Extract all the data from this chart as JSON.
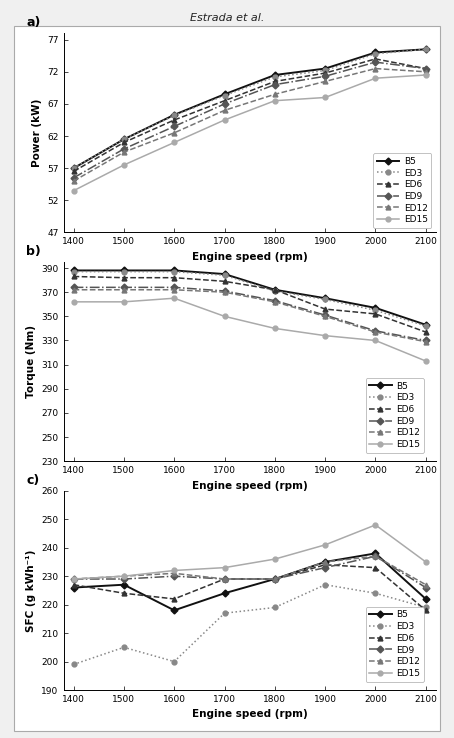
{
  "rpm": [
    1400,
    1500,
    1600,
    1700,
    1800,
    1900,
    2000,
    2100
  ],
  "power": {
    "B5": [
      57.0,
      61.5,
      65.3,
      68.5,
      71.5,
      72.5,
      75.0,
      75.5
    ],
    "ED3": [
      57.0,
      61.5,
      65.2,
      68.3,
      71.2,
      72.2,
      74.8,
      75.5
    ],
    "ED6": [
      56.5,
      61.0,
      64.5,
      67.5,
      70.5,
      71.8,
      74.0,
      72.5
    ],
    "ED9": [
      55.5,
      60.0,
      63.5,
      67.0,
      70.0,
      71.3,
      73.5,
      72.5
    ],
    "ED12": [
      55.0,
      59.5,
      62.5,
      66.0,
      68.5,
      70.5,
      72.5,
      72.0
    ],
    "ED15": [
      53.5,
      57.5,
      61.0,
      64.5,
      67.5,
      68.0,
      71.0,
      71.5
    ]
  },
  "torque": {
    "B5": [
      388,
      388,
      388,
      385,
      372,
      365,
      357,
      343
    ],
    "ED3": [
      387,
      387,
      387,
      384,
      371,
      364,
      355,
      342
    ],
    "ED6": [
      383,
      382,
      382,
      379,
      372,
      356,
      352,
      337
    ],
    "ED9": [
      374,
      374,
      374,
      371,
      363,
      351,
      338,
      330
    ],
    "ED12": [
      372,
      372,
      372,
      370,
      362,
      350,
      337,
      329
    ],
    "ED15": [
      362,
      362,
      365,
      350,
      340,
      334,
      330,
      313
    ]
  },
  "sfc": {
    "B5": [
      226,
      227,
      218,
      224,
      229,
      235,
      238,
      222
    ],
    "ED3": [
      199,
      205,
      200,
      217,
      219,
      227,
      224,
      219
    ],
    "ED6": [
      227,
      224,
      222,
      229,
      229,
      234,
      233,
      218
    ],
    "ED9": [
      229,
      229,
      230,
      229,
      229,
      233,
      237,
      226
    ],
    "ED12": [
      229,
      230,
      231,
      229,
      229,
      235,
      237,
      227
    ],
    "ED15": [
      229,
      230,
      232,
      233,
      236,
      241,
      248,
      235
    ]
  },
  "series_styles": {
    "B5": {
      "color": "#111111",
      "linestyle": "-",
      "marker": "D",
      "markersize": 3.5,
      "linewidth": 1.4,
      "markerfacecolor": "#111111"
    },
    "ED3": {
      "color": "#888888",
      "linestyle": ":",
      "marker": "o",
      "markersize": 3.5,
      "linewidth": 1.1,
      "markerfacecolor": "#888888"
    },
    "ED6": {
      "color": "#333333",
      "linestyle": "--",
      "marker": "^",
      "markersize": 3.5,
      "linewidth": 1.1,
      "markerfacecolor": "#333333"
    },
    "ED9": {
      "color": "#555555",
      "linestyle": "-.",
      "marker": "D",
      "markersize": 3.5,
      "linewidth": 1.1,
      "markerfacecolor": "#555555"
    },
    "ED12": {
      "color": "#777777",
      "linestyle": "--",
      "marker": "^",
      "markersize": 3.5,
      "linewidth": 1.1,
      "markerfacecolor": "#777777"
    },
    "ED15": {
      "color": "#aaaaaa",
      "linestyle": "-",
      "marker": "o",
      "markersize": 3.5,
      "linewidth": 1.1,
      "markerfacecolor": "#aaaaaa"
    }
  },
  "power_ylim": [
    47,
    78
  ],
  "power_yticks": [
    47,
    52,
    57,
    62,
    67,
    72,
    77
  ],
  "torque_ylim": [
    230,
    395
  ],
  "torque_yticks": [
    230,
    250,
    270,
    290,
    310,
    330,
    350,
    370,
    390
  ],
  "sfc_ylim": [
    190,
    260
  ],
  "sfc_yticks": [
    190,
    200,
    210,
    220,
    230,
    240,
    250,
    260
  ],
  "xlabel": "Engine speed (rpm)",
  "ylabel_power": "Power (kW)",
  "ylabel_torque": "Torque (Nm)",
  "ylabel_sfc": "SFC (g kWh⁻¹)",
  "xticks": [
    1400,
    1500,
    1600,
    1700,
    1800,
    1900,
    2000,
    2100
  ],
  "header": "Estrada et al.",
  "panel_labels": [
    "a)",
    "b)",
    "c)"
  ]
}
